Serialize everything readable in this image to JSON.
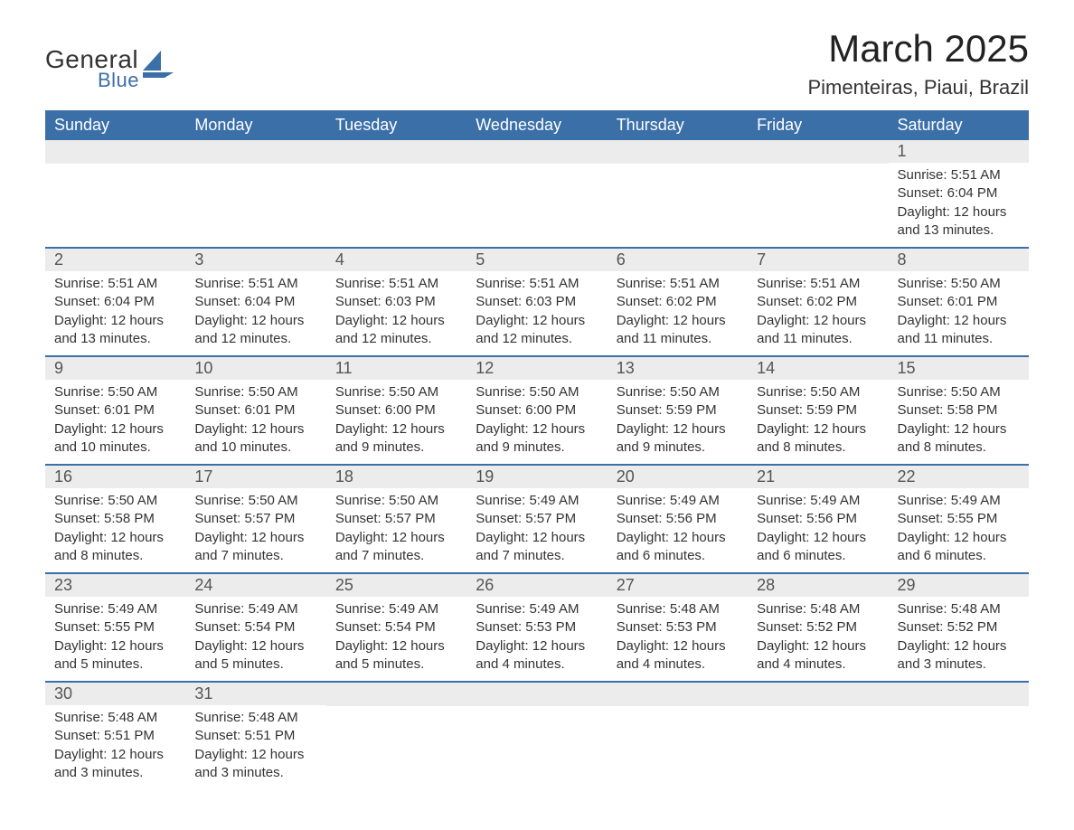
{
  "brand": {
    "name_main": "General",
    "name_sub": "Blue",
    "shape_color": "#3b6fa8"
  },
  "title": "March 2025",
  "location": "Pimenteiras, Piaui, Brazil",
  "header_bg": "#3b6fa8",
  "header_text_color": "#ffffff",
  "daynum_bg": "#ececec",
  "row_border_color": "#3b6fa8",
  "text_color": "#333333",
  "font_family": "Arial",
  "title_fontsize_pt": 32,
  "location_fontsize_pt": 17,
  "header_fontsize_pt": 14,
  "body_fontsize_pt": 11,
  "columns": [
    "Sunday",
    "Monday",
    "Tuesday",
    "Wednesday",
    "Thursday",
    "Friday",
    "Saturday"
  ],
  "weeks": [
    [
      null,
      null,
      null,
      null,
      null,
      null,
      {
        "n": "1",
        "sr": "Sunrise: 5:51 AM",
        "ss": "Sunset: 6:04 PM",
        "d1": "Daylight: 12 hours",
        "d2": "and 13 minutes."
      }
    ],
    [
      {
        "n": "2",
        "sr": "Sunrise: 5:51 AM",
        "ss": "Sunset: 6:04 PM",
        "d1": "Daylight: 12 hours",
        "d2": "and 13 minutes."
      },
      {
        "n": "3",
        "sr": "Sunrise: 5:51 AM",
        "ss": "Sunset: 6:04 PM",
        "d1": "Daylight: 12 hours",
        "d2": "and 12 minutes."
      },
      {
        "n": "4",
        "sr": "Sunrise: 5:51 AM",
        "ss": "Sunset: 6:03 PM",
        "d1": "Daylight: 12 hours",
        "d2": "and 12 minutes."
      },
      {
        "n": "5",
        "sr": "Sunrise: 5:51 AM",
        "ss": "Sunset: 6:03 PM",
        "d1": "Daylight: 12 hours",
        "d2": "and 12 minutes."
      },
      {
        "n": "6",
        "sr": "Sunrise: 5:51 AM",
        "ss": "Sunset: 6:02 PM",
        "d1": "Daylight: 12 hours",
        "d2": "and 11 minutes."
      },
      {
        "n": "7",
        "sr": "Sunrise: 5:51 AM",
        "ss": "Sunset: 6:02 PM",
        "d1": "Daylight: 12 hours",
        "d2": "and 11 minutes."
      },
      {
        "n": "8",
        "sr": "Sunrise: 5:50 AM",
        "ss": "Sunset: 6:01 PM",
        "d1": "Daylight: 12 hours",
        "d2": "and 11 minutes."
      }
    ],
    [
      {
        "n": "9",
        "sr": "Sunrise: 5:50 AM",
        "ss": "Sunset: 6:01 PM",
        "d1": "Daylight: 12 hours",
        "d2": "and 10 minutes."
      },
      {
        "n": "10",
        "sr": "Sunrise: 5:50 AM",
        "ss": "Sunset: 6:01 PM",
        "d1": "Daylight: 12 hours",
        "d2": "and 10 minutes."
      },
      {
        "n": "11",
        "sr": "Sunrise: 5:50 AM",
        "ss": "Sunset: 6:00 PM",
        "d1": "Daylight: 12 hours",
        "d2": "and 9 minutes."
      },
      {
        "n": "12",
        "sr": "Sunrise: 5:50 AM",
        "ss": "Sunset: 6:00 PM",
        "d1": "Daylight: 12 hours",
        "d2": "and 9 minutes."
      },
      {
        "n": "13",
        "sr": "Sunrise: 5:50 AM",
        "ss": "Sunset: 5:59 PM",
        "d1": "Daylight: 12 hours",
        "d2": "and 9 minutes."
      },
      {
        "n": "14",
        "sr": "Sunrise: 5:50 AM",
        "ss": "Sunset: 5:59 PM",
        "d1": "Daylight: 12 hours",
        "d2": "and 8 minutes."
      },
      {
        "n": "15",
        "sr": "Sunrise: 5:50 AM",
        "ss": "Sunset: 5:58 PM",
        "d1": "Daylight: 12 hours",
        "d2": "and 8 minutes."
      }
    ],
    [
      {
        "n": "16",
        "sr": "Sunrise: 5:50 AM",
        "ss": "Sunset: 5:58 PM",
        "d1": "Daylight: 12 hours",
        "d2": "and 8 minutes."
      },
      {
        "n": "17",
        "sr": "Sunrise: 5:50 AM",
        "ss": "Sunset: 5:57 PM",
        "d1": "Daylight: 12 hours",
        "d2": "and 7 minutes."
      },
      {
        "n": "18",
        "sr": "Sunrise: 5:50 AM",
        "ss": "Sunset: 5:57 PM",
        "d1": "Daylight: 12 hours",
        "d2": "and 7 minutes."
      },
      {
        "n": "19",
        "sr": "Sunrise: 5:49 AM",
        "ss": "Sunset: 5:57 PM",
        "d1": "Daylight: 12 hours",
        "d2": "and 7 minutes."
      },
      {
        "n": "20",
        "sr": "Sunrise: 5:49 AM",
        "ss": "Sunset: 5:56 PM",
        "d1": "Daylight: 12 hours",
        "d2": "and 6 minutes."
      },
      {
        "n": "21",
        "sr": "Sunrise: 5:49 AM",
        "ss": "Sunset: 5:56 PM",
        "d1": "Daylight: 12 hours",
        "d2": "and 6 minutes."
      },
      {
        "n": "22",
        "sr": "Sunrise: 5:49 AM",
        "ss": "Sunset: 5:55 PM",
        "d1": "Daylight: 12 hours",
        "d2": "and 6 minutes."
      }
    ],
    [
      {
        "n": "23",
        "sr": "Sunrise: 5:49 AM",
        "ss": "Sunset: 5:55 PM",
        "d1": "Daylight: 12 hours",
        "d2": "and 5 minutes."
      },
      {
        "n": "24",
        "sr": "Sunrise: 5:49 AM",
        "ss": "Sunset: 5:54 PM",
        "d1": "Daylight: 12 hours",
        "d2": "and 5 minutes."
      },
      {
        "n": "25",
        "sr": "Sunrise: 5:49 AM",
        "ss": "Sunset: 5:54 PM",
        "d1": "Daylight: 12 hours",
        "d2": "and 5 minutes."
      },
      {
        "n": "26",
        "sr": "Sunrise: 5:49 AM",
        "ss": "Sunset: 5:53 PM",
        "d1": "Daylight: 12 hours",
        "d2": "and 4 minutes."
      },
      {
        "n": "27",
        "sr": "Sunrise: 5:48 AM",
        "ss": "Sunset: 5:53 PM",
        "d1": "Daylight: 12 hours",
        "d2": "and 4 minutes."
      },
      {
        "n": "28",
        "sr": "Sunrise: 5:48 AM",
        "ss": "Sunset: 5:52 PM",
        "d1": "Daylight: 12 hours",
        "d2": "and 4 minutes."
      },
      {
        "n": "29",
        "sr": "Sunrise: 5:48 AM",
        "ss": "Sunset: 5:52 PM",
        "d1": "Daylight: 12 hours",
        "d2": "and 3 minutes."
      }
    ],
    [
      {
        "n": "30",
        "sr": "Sunrise: 5:48 AM",
        "ss": "Sunset: 5:51 PM",
        "d1": "Daylight: 12 hours",
        "d2": "and 3 minutes."
      },
      {
        "n": "31",
        "sr": "Sunrise: 5:48 AM",
        "ss": "Sunset: 5:51 PM",
        "d1": "Daylight: 12 hours",
        "d2": "and 3 minutes."
      },
      null,
      null,
      null,
      null,
      null
    ]
  ]
}
